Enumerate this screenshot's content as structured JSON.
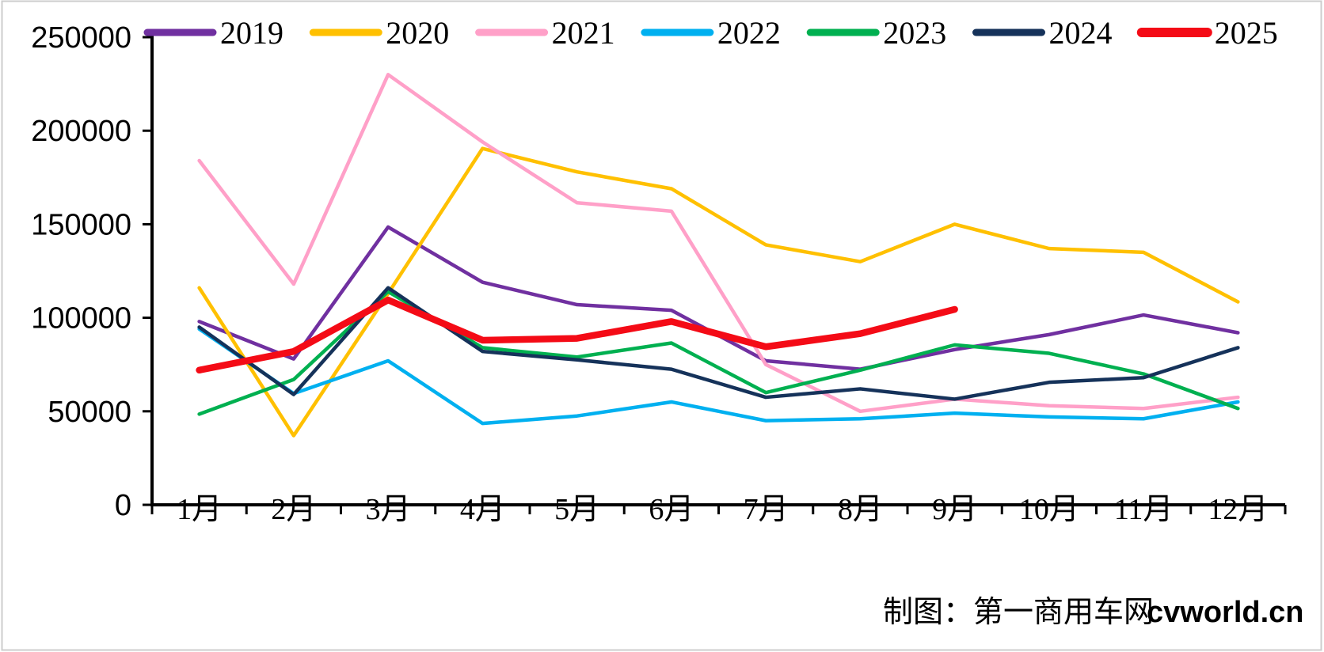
{
  "page": {
    "background": "#FFFFFF",
    "border_color": "#CDCDCD"
  },
  "chart_data": {
    "type": "line",
    "title": "",
    "xlabel": "",
    "ylabel": "",
    "grid": false,
    "legend_position": "top",
    "categories": [
      "1月",
      "2月",
      "3月",
      "4月",
      "5月",
      "6月",
      "7月",
      "8月",
      "9月",
      "10月",
      "11月",
      "12月"
    ],
    "y_axis": {
      "min": 0,
      "max": 250000,
      "tick_step": 50000,
      "tick_labels": [
        "0",
        "50000",
        "100000",
        "150000",
        "200000",
        "250000"
      ]
    },
    "series": [
      {
        "name": "2019",
        "color": "#7030A0",
        "emphasis": false,
        "values": [
          98000,
          78000,
          148500,
          119000,
          107000,
          104000,
          77000,
          72500,
          83000,
          91000,
          101500,
          92000
        ]
      },
      {
        "name": "2020",
        "color": "#FFC000",
        "emphasis": false,
        "values": [
          116000,
          37000,
          113000,
          190500,
          178000,
          169000,
          139000,
          130000,
          150000,
          137000,
          135000,
          108500
        ]
      },
      {
        "name": "2021",
        "color": "#FFA0C8",
        "emphasis": false,
        "values": [
          184000,
          118000,
          230000,
          194000,
          161500,
          157000,
          75000,
          50000,
          56500,
          53000,
          51500,
          57500
        ]
      },
      {
        "name": "2022",
        "color": "#00B0F0",
        "emphasis": false,
        "values": [
          94000,
          59500,
          77000,
          43500,
          47500,
          55000,
          45000,
          46000,
          49000,
          47000,
          46000,
          55000
        ]
      },
      {
        "name": "2023",
        "color": "#00B050",
        "emphasis": false,
        "values": [
          48500,
          67000,
          114000,
          84000,
          79000,
          86500,
          60000,
          72000,
          85500,
          81000,
          70000,
          51500
        ]
      },
      {
        "name": "2024",
        "color": "#15325A",
        "emphasis": false,
        "values": [
          95000,
          59000,
          116000,
          82000,
          77500,
          72500,
          57500,
          62000,
          56500,
          65500,
          68000,
          84000
        ]
      },
      {
        "name": "2025",
        "color": "#F40B16",
        "emphasis": true,
        "values": [
          72000,
          82000,
          109500,
          88000,
          89000,
          98000,
          84500,
          91500,
          104500
        ]
      }
    ],
    "footer": {
      "credit_prefix": "制图：第一商用车网",
      "credit_site": "cvworld.cn"
    }
  }
}
